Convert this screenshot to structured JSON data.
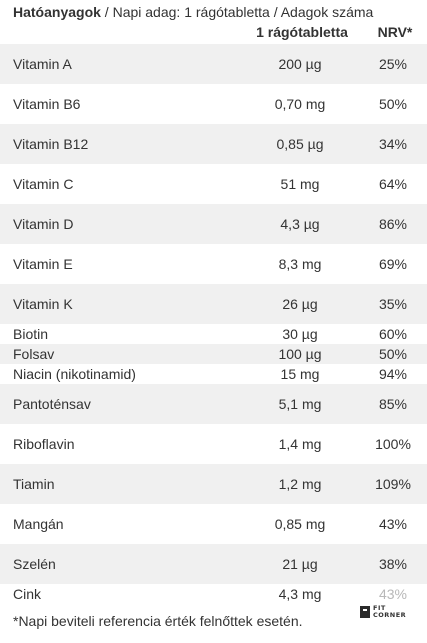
{
  "header": {
    "title_bold": "Hatóanyagok",
    "title_rest": " / Napi adag: 1 rágótabletta / Adagok száma",
    "col_amount": "1 rágótabletta",
    "col_nrv": "NRV*"
  },
  "rows": [
    {
      "name": "Vitamin A",
      "amount": "200 µg",
      "nrv": "25%"
    },
    {
      "name": "Vitamin B6",
      "amount": "0,70 mg",
      "nrv": "50%"
    },
    {
      "name": "Vitamin B12",
      "amount": "0,85 µg",
      "nrv": "34%"
    },
    {
      "name": "Vitamin C",
      "amount": "51 mg",
      "nrv": "64%"
    },
    {
      "name": "Vitamin D",
      "amount": "4,3 µg",
      "nrv": "86%"
    },
    {
      "name": "Vitamin E",
      "amount": "8,3 mg",
      "nrv": "69%"
    },
    {
      "name": "Vitamin K",
      "amount": "26 µg",
      "nrv": "35%"
    },
    {
      "name": "Biotin",
      "amount": "30 µg",
      "nrv": "60%"
    },
    {
      "name": "Folsav",
      "amount": "100 µg",
      "nrv": "50%"
    },
    {
      "name": "Niacin (nikotinamid)",
      "amount": "15 mg",
      "nrv": "94%"
    },
    {
      "name": "Pantoténsav",
      "amount": "5,1 mg",
      "nrv": "85%"
    },
    {
      "name": "Riboflavin",
      "amount": "1,4 mg",
      "nrv": "100%"
    },
    {
      "name": "Tiamin",
      "amount": "1,2 mg",
      "nrv": "109%"
    },
    {
      "name": "Mangán",
      "amount": "0,85 mg",
      "nrv": "43%"
    },
    {
      "name": "Szelén",
      "amount": "21 µg",
      "nrv": "38%"
    },
    {
      "name": "Cink",
      "amount": "4,3 mg",
      "nrv": "43%"
    }
  ],
  "footnote": "*Napi beviteli referencia érték felnőttek esetén.",
  "logo": {
    "line1": "FIT",
    "line2": "CORNER"
  }
}
